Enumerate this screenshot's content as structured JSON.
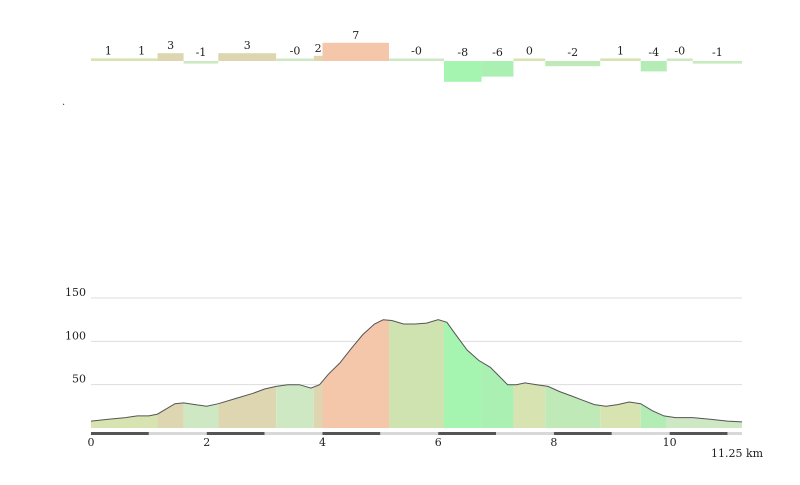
{
  "chart_data": [
    {
      "type": "bar",
      "title": "",
      "description_label": "grade per segment",
      "segments": [
        {
          "start": 0.0,
          "end": 0.6,
          "value": 1,
          "label": "1",
          "color": "#d7e3b0"
        },
        {
          "start": 0.6,
          "end": 1.15,
          "value": 1,
          "label": "1",
          "color": "#d7e3b0"
        },
        {
          "start": 1.15,
          "end": 1.6,
          "value": 3,
          "label": "3",
          "color": "#ddd6b0"
        },
        {
          "start": 1.6,
          "end": 2.2,
          "value": -1,
          "label": "-1",
          "color": "#cfe8c4"
        },
        {
          "start": 2.2,
          "end": 3.2,
          "value": 3,
          "label": "3",
          "color": "#ddd6b0"
        },
        {
          "start": 3.2,
          "end": 3.85,
          "value": 0,
          "label": "-0",
          "color": "#cfe8c4"
        },
        {
          "start": 3.85,
          "end": 4.0,
          "value": 2,
          "label": "2",
          "color": "#ddd6b0"
        },
        {
          "start": 4.0,
          "end": 5.15,
          "value": 7,
          "label": "7",
          "color": "#f4c7ab"
        },
        {
          "start": 5.15,
          "end": 6.1,
          "value": 0,
          "label": "-0",
          "color": "#cfe8c4"
        },
        {
          "start": 6.1,
          "end": 6.75,
          "value": -8,
          "label": "-8",
          "color": "#a5f4b0"
        },
        {
          "start": 6.75,
          "end": 7.3,
          "value": -6,
          "label": "-6",
          "color": "#a9f0b2"
        },
        {
          "start": 7.3,
          "end": 7.85,
          "value": 0,
          "label": "0",
          "color": "#d7e3b0"
        },
        {
          "start": 7.85,
          "end": 8.8,
          "value": -2,
          "label": "-2",
          "color": "#bfeab8"
        },
        {
          "start": 8.8,
          "end": 9.5,
          "value": 1,
          "label": "1",
          "color": "#d7e3b0"
        },
        {
          "start": 9.5,
          "end": 9.95,
          "value": -4,
          "label": "-4",
          "color": "#b3ecb4"
        },
        {
          "start": 9.95,
          "end": 10.4,
          "value": 0,
          "label": "-0",
          "color": "#cfe8c4"
        },
        {
          "start": 10.4,
          "end": 11.25,
          "value": -1,
          "label": "-1",
          "color": "#c6ebbe"
        }
      ]
    },
    {
      "type": "area",
      "title": "",
      "xlabel": "",
      "ylabel": "",
      "xlim": [
        0,
        11.25
      ],
      "ylim": [
        0,
        150
      ],
      "yticks": [
        50,
        100,
        150
      ],
      "xticks": [
        0,
        2,
        4,
        6,
        8,
        10
      ],
      "x": [
        0,
        0.3,
        0.6,
        0.8,
        1.0,
        1.15,
        1.3,
        1.45,
        1.6,
        1.8,
        2.0,
        2.2,
        2.5,
        2.8,
        3.0,
        3.2,
        3.4,
        3.6,
        3.8,
        3.95,
        4.1,
        4.3,
        4.5,
        4.7,
        4.9,
        5.05,
        5.2,
        5.4,
        5.6,
        5.8,
        6.0,
        6.15,
        6.3,
        6.5,
        6.7,
        6.9,
        7.05,
        7.2,
        7.35,
        7.5,
        7.7,
        7.9,
        8.1,
        8.3,
        8.5,
        8.7,
        8.9,
        9.1,
        9.3,
        9.5,
        9.7,
        9.9,
        10.1,
        10.4,
        10.7,
        11.0,
        11.25
      ],
      "y": [
        8,
        10,
        12,
        14,
        14,
        16,
        22,
        28,
        29,
        27,
        25,
        28,
        34,
        40,
        45,
        48,
        50,
        50,
        46,
        50,
        62,
        75,
        92,
        108,
        120,
        125,
        124,
        120,
        120,
        121,
        125,
        122,
        108,
        90,
        78,
        70,
        60,
        50,
        50,
        52,
        50,
        48,
        42,
        37,
        32,
        27,
        25,
        27,
        30,
        28,
        20,
        14,
        12,
        12,
        10,
        8,
        7
      ],
      "fill_bands": [
        {
          "from": 0.0,
          "to": 1.15,
          "color": "#d7e3b0"
        },
        {
          "from": 1.15,
          "to": 1.6,
          "color": "#ddd6b0"
        },
        {
          "from": 1.6,
          "to": 2.2,
          "color": "#cfe8c4"
        },
        {
          "from": 2.2,
          "to": 3.2,
          "color": "#ddd6b0"
        },
        {
          "from": 3.2,
          "to": 3.85,
          "color": "#cfe8c4"
        },
        {
          "from": 3.85,
          "to": 4.0,
          "color": "#ddd6b0"
        },
        {
          "from": 4.0,
          "to": 5.15,
          "color": "#f4c7ab"
        },
        {
          "from": 5.15,
          "to": 6.1,
          "color": "#cfe3b0"
        },
        {
          "from": 6.1,
          "to": 6.75,
          "color": "#a5f4b0"
        },
        {
          "from": 6.75,
          "to": 7.3,
          "color": "#a9f0b2"
        },
        {
          "from": 7.3,
          "to": 7.85,
          "color": "#d7e3b0"
        },
        {
          "from": 7.85,
          "to": 8.8,
          "color": "#bfeab8"
        },
        {
          "from": 8.8,
          "to": 9.5,
          "color": "#d7e3b0"
        },
        {
          "from": 9.5,
          "to": 9.95,
          "color": "#b3ecb4"
        },
        {
          "from": 9.95,
          "to": 11.25,
          "color": "#cfe8c4"
        }
      ],
      "line_color": "#555555",
      "grid": true,
      "total_distance_label": "11.25 km"
    }
  ]
}
